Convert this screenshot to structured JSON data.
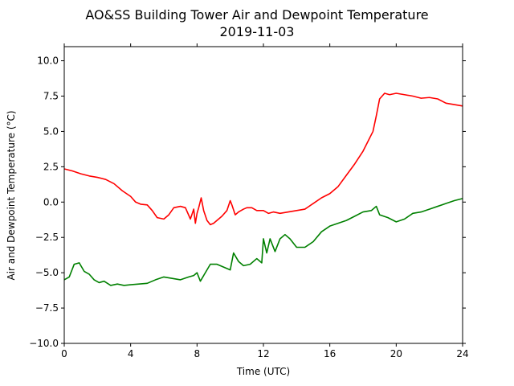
{
  "chart_data": {
    "type": "line",
    "title": "AO&SS Building Tower Air and Dewpoint Temperature",
    "subtitle": "2019-11-03",
    "xlabel": "Time (UTC)",
    "ylabel": "Air and Dewpoint Temperature (°C)",
    "xlim": [
      0,
      24
    ],
    "ylim": [
      -10,
      11
    ],
    "x_ticks": [
      0,
      4,
      8,
      12,
      16,
      20,
      24
    ],
    "x_tick_labels": [
      "0",
      "4",
      "8",
      "12",
      "16",
      "20",
      "24"
    ],
    "y_ticks": [
      -10,
      -7.5,
      -5,
      -2.5,
      0,
      2.5,
      5,
      7.5,
      10
    ],
    "y_tick_labels": [
      "−10.0",
      "−7.5",
      "−5.0",
      "−2.5",
      "0.0",
      "2.5",
      "5.0",
      "7.5",
      "10.0"
    ],
    "grid": false,
    "legend": "none",
    "series": [
      {
        "color": "#ff0000",
        "x": [
          0,
          0.5,
          1,
          1.5,
          2,
          2.5,
          3,
          3.5,
          4,
          4.3,
          4.6,
          5,
          5.3,
          5.6,
          6,
          6.3,
          6.6,
          7,
          7.3,
          7.6,
          7.8,
          7.9,
          8.0,
          8.1,
          8.25,
          8.4,
          8.6,
          8.8,
          9.0,
          9.2,
          9.5,
          9.8,
          10.0,
          10.1,
          10.3,
          10.5,
          10.8,
          11,
          11.3,
          11.6,
          12,
          12.3,
          12.6,
          13,
          13.5,
          14,
          14.5,
          15,
          15.5,
          16,
          16.5,
          17,
          17.5,
          18,
          18.3,
          18.6,
          18.8,
          19,
          19.3,
          19.6,
          20,
          20.5,
          21,
          21.5,
          22,
          22.5,
          23,
          23.5,
          24
        ],
        "y": [
          2.35,
          2.2,
          2.0,
          1.85,
          1.75,
          1.6,
          1.3,
          0.8,
          0.4,
          0.0,
          -0.15,
          -0.2,
          -0.6,
          -1.1,
          -1.2,
          -0.9,
          -0.4,
          -0.3,
          -0.4,
          -1.2,
          -0.5,
          -1.5,
          -0.8,
          -0.4,
          0.3,
          -0.6,
          -1.3,
          -1.6,
          -1.5,
          -1.3,
          -1.0,
          -0.6,
          0.1,
          -0.2,
          -0.9,
          -0.7,
          -0.5,
          -0.4,
          -0.4,
          -0.6,
          -0.6,
          -0.8,
          -0.7,
          -0.8,
          -0.7,
          -0.6,
          -0.5,
          -0.1,
          0.3,
          0.6,
          1.1,
          1.9,
          2.7,
          3.6,
          4.3,
          5.0,
          6.1,
          7.3,
          7.7,
          7.6,
          7.7,
          7.6,
          7.5,
          7.35,
          7.4,
          7.3,
          7.0,
          6.9,
          6.8
        ]
      },
      {
        "color": "#008000",
        "x": [
          0,
          0.3,
          0.6,
          0.9,
          1.2,
          1.5,
          1.8,
          2.1,
          2.4,
          2.8,
          3.2,
          3.6,
          4,
          4.5,
          5,
          5.5,
          6,
          6.5,
          7,
          7.5,
          7.8,
          8.0,
          8.2,
          8.5,
          8.8,
          9.2,
          9.6,
          10,
          10.2,
          10.5,
          10.8,
          11.2,
          11.6,
          11.9,
          12.0,
          12.2,
          12.4,
          12.7,
          13.0,
          13.3,
          13.6,
          14.0,
          14.5,
          15,
          15.5,
          16,
          16.5,
          17,
          17.5,
          18,
          18.5,
          18.8,
          19,
          19.5,
          20,
          20.5,
          21,
          21.5,
          22,
          22.5,
          23,
          23.5,
          24
        ],
        "y": [
          -5.5,
          -5.3,
          -4.4,
          -4.3,
          -4.9,
          -5.1,
          -5.5,
          -5.7,
          -5.6,
          -5.9,
          -5.8,
          -5.9,
          -5.85,
          -5.8,
          -5.75,
          -5.5,
          -5.3,
          -5.4,
          -5.5,
          -5.3,
          -5.2,
          -5.0,
          -5.6,
          -5.0,
          -4.4,
          -4.4,
          -4.6,
          -4.8,
          -3.6,
          -4.2,
          -4.5,
          -4.4,
          -4.0,
          -4.3,
          -2.6,
          -3.6,
          -2.6,
          -3.5,
          -2.6,
          -2.3,
          -2.6,
          -3.2,
          -3.2,
          -2.8,
          -2.1,
          -1.7,
          -1.5,
          -1.3,
          -1.0,
          -0.7,
          -0.6,
          -0.3,
          -0.9,
          -1.1,
          -1.4,
          -1.2,
          -0.8,
          -0.7,
          -0.5,
          -0.3,
          -0.1,
          0.1,
          0.25
        ]
      }
    ]
  }
}
